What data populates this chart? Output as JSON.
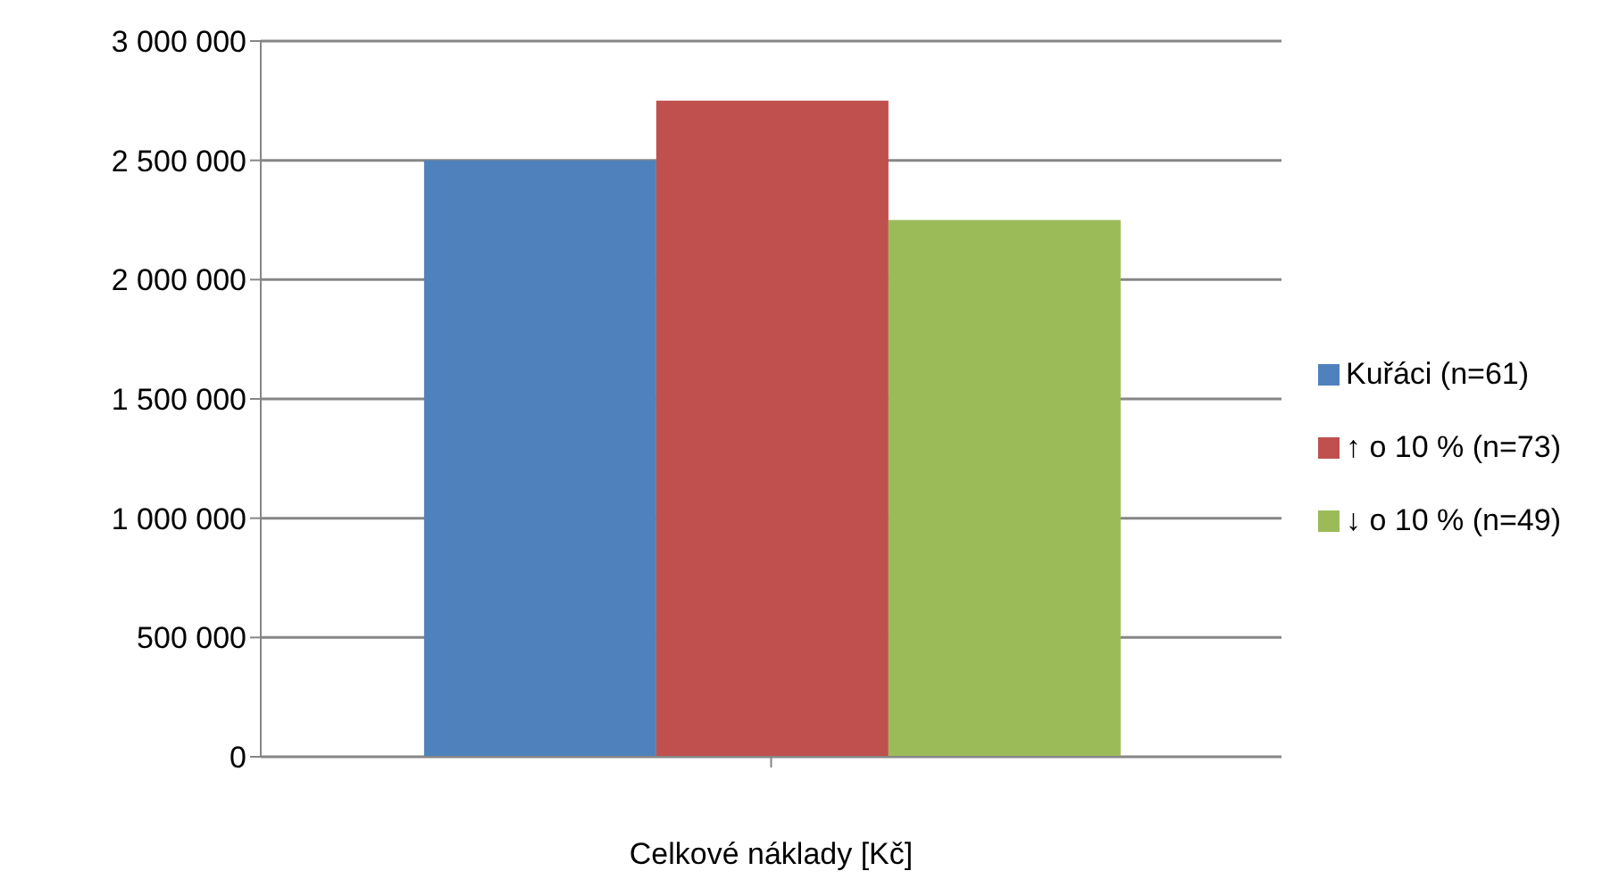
{
  "chart_data": {
    "type": "bar",
    "xlabel": "Celkové náklady [Kč]",
    "categories": [
      null
    ],
    "series": [
      {
        "name": "Kuřáci (n=61)",
        "color": "#4f81bd",
        "values": [
          2500000
        ]
      },
      {
        "name": "↑ o 10 % (n=73)",
        "color": "#c0504d",
        "values": [
          2750000
        ]
      },
      {
        "name": "↓ o 10 % (n=49)",
        "color": "#9bbb59",
        "values": [
          2250000
        ]
      }
    ],
    "ylim": [
      0,
      3000000
    ],
    "yticks": [
      {
        "value": 0,
        "label": "0"
      },
      {
        "value": 500000,
        "label": "500 000"
      },
      {
        "value": 1000000,
        "label": "1 000 000"
      },
      {
        "value": 1500000,
        "label": "1 500 000"
      },
      {
        "value": 2000000,
        "label": "2 000 000"
      },
      {
        "value": 2500000,
        "label": "2 500 000"
      },
      {
        "value": 3000000,
        "label": "3 000 000"
      }
    ],
    "grid": "y",
    "legend": "right"
  }
}
